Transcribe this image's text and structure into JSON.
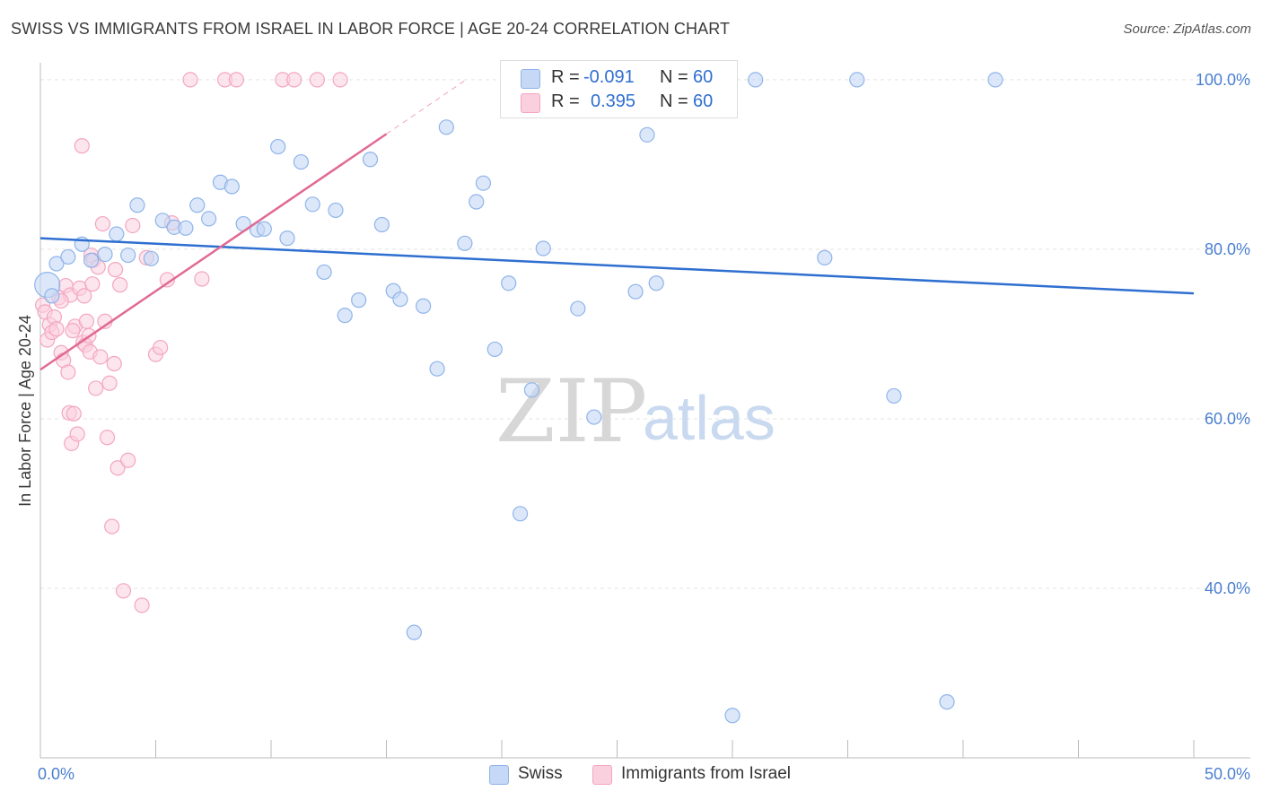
{
  "title": "SWISS VS IMMIGRANTS FROM ISRAEL IN LABOR FORCE | AGE 20-24 CORRELATION CHART",
  "source": "Source: ZipAtlas.com",
  "watermark": {
    "zip": "ZIP",
    "atlas": "atlas"
  },
  "colors": {
    "swiss": "#8fb4ea",
    "swiss_line": "#2f6fd0",
    "israel": "#f3a6bf",
    "israel_line": "#e06a95",
    "tick_text": "#4a7fd0",
    "grid": "#e3e3e3"
  },
  "legend": {
    "swiss": {
      "r_label": "R =",
      "r_value": "-0.091",
      "n_label": "N =",
      "n_value": "60"
    },
    "israel": {
      "r_label": "R =",
      "r_value": "0.395",
      "n_label": "N =",
      "n_value": "60"
    }
  },
  "bottom_legend": {
    "swiss": "Swiss",
    "israel": "Immigrants from Israel"
  },
  "chart_data": {
    "type": "scatter",
    "title": "SWISS VS IMMIGRANTS FROM ISRAEL IN LABOR FORCE | AGE 20-24 CORRELATION CHART",
    "xlabel": "",
    "ylabel": "In Labor Force | Age 20-24",
    "xlim": [
      0,
      50
    ],
    "ylim": [
      20,
      102
    ],
    "x_tick_labels": [
      "0.0%",
      "50.0%"
    ],
    "y_ticks": [
      40,
      60,
      80,
      100
    ],
    "y_tick_labels": [
      "40.0%",
      "60.0%",
      "80.0%",
      "100.0%"
    ],
    "grid": true,
    "legend_position": "top-center",
    "series": [
      {
        "name": "Swiss",
        "color": "#8fb4ea",
        "trend": {
          "x": [
            0,
            50
          ],
          "y": [
            81.3,
            74.8
          ]
        },
        "points": [
          [
            0.3,
            75.8
          ],
          [
            0.5,
            74.5
          ],
          [
            0.7,
            78.3
          ],
          [
            1.2,
            79.1
          ],
          [
            1.8,
            80.6
          ],
          [
            2.2,
            78.7
          ],
          [
            2.8,
            79.4
          ],
          [
            3.3,
            81.8
          ],
          [
            3.8,
            79.3
          ],
          [
            4.2,
            85.2
          ],
          [
            4.8,
            78.9
          ],
          [
            5.3,
            83.4
          ],
          [
            5.8,
            82.6
          ],
          [
            6.3,
            82.5
          ],
          [
            6.8,
            85.2
          ],
          [
            7.3,
            83.6
          ],
          [
            7.8,
            87.9
          ],
          [
            8.3,
            87.4
          ],
          [
            8.8,
            83.0
          ],
          [
            9.4,
            82.3
          ],
          [
            9.7,
            82.4
          ],
          [
            10.3,
            92.1
          ],
          [
            10.7,
            81.3
          ],
          [
            11.3,
            90.3
          ],
          [
            11.8,
            85.3
          ],
          [
            12.3,
            77.3
          ],
          [
            12.8,
            84.6
          ],
          [
            13.2,
            72.2
          ],
          [
            13.8,
            74.0
          ],
          [
            14.3,
            90.6
          ],
          [
            14.8,
            82.9
          ],
          [
            15.3,
            75.1
          ],
          [
            15.6,
            74.1
          ],
          [
            16.2,
            34.8
          ],
          [
            16.6,
            73.3
          ],
          [
            17.2,
            65.9
          ],
          [
            17.6,
            94.4
          ],
          [
            18.4,
            80.7
          ],
          [
            18.9,
            85.6
          ],
          [
            19.2,
            87.8
          ],
          [
            19.7,
            68.2
          ],
          [
            20.3,
            76.0
          ],
          [
            20.8,
            48.8
          ],
          [
            21.3,
            63.4
          ],
          [
            21.8,
            80.1
          ],
          [
            22.5,
            100.0
          ],
          [
            23.3,
            73.0
          ],
          [
            24.0,
            60.2
          ],
          [
            24.5,
            100.0
          ],
          [
            25.3,
            100.0
          ],
          [
            25.8,
            75.0
          ],
          [
            26.3,
            93.5
          ],
          [
            26.7,
            76.0
          ],
          [
            30.0,
            25.0
          ],
          [
            31.0,
            100.0
          ],
          [
            34.0,
            79.0
          ],
          [
            35.4,
            100.0
          ],
          [
            37.0,
            62.7
          ],
          [
            39.3,
            26.6
          ],
          [
            41.4,
            100.0
          ]
        ]
      },
      {
        "name": "Immigrants from Israel",
        "color": "#f3a6bf",
        "trend": {
          "x": [
            0,
            15
          ],
          "y": [
            65.8,
            93.6
          ]
        },
        "points": [
          [
            0.1,
            73.4
          ],
          [
            0.2,
            72.6
          ],
          [
            0.3,
            69.3
          ],
          [
            0.4,
            71.1
          ],
          [
            0.5,
            70.2
          ],
          [
            0.6,
            72.0
          ],
          [
            0.7,
            70.6
          ],
          [
            0.8,
            74.3
          ],
          [
            0.9,
            67.8
          ],
          [
            1.0,
            66.9
          ],
          [
            1.1,
            75.7
          ],
          [
            1.2,
            65.5
          ],
          [
            1.25,
            60.7
          ],
          [
            1.3,
            74.6
          ],
          [
            1.35,
            57.1
          ],
          [
            1.45,
            60.6
          ],
          [
            1.5,
            70.9
          ],
          [
            1.6,
            58.2
          ],
          [
            1.7,
            75.4
          ],
          [
            1.8,
            92.2
          ],
          [
            1.85,
            69.0
          ],
          [
            1.9,
            74.5
          ],
          [
            1.95,
            68.7
          ],
          [
            2.0,
            71.5
          ],
          [
            2.1,
            69.8
          ],
          [
            2.15,
            67.9
          ],
          [
            2.2,
            79.3
          ],
          [
            2.25,
            75.9
          ],
          [
            2.3,
            78.7
          ],
          [
            2.4,
            63.6
          ],
          [
            2.5,
            77.9
          ],
          [
            2.6,
            67.3
          ],
          [
            2.7,
            83.0
          ],
          [
            2.8,
            71.5
          ],
          [
            2.9,
            57.8
          ],
          [
            3.0,
            64.2
          ],
          [
            3.1,
            47.3
          ],
          [
            3.2,
            66.5
          ],
          [
            3.25,
            77.6
          ],
          [
            3.35,
            54.2
          ],
          [
            3.45,
            75.8
          ],
          [
            3.6,
            39.7
          ],
          [
            3.8,
            55.1
          ],
          [
            4.0,
            82.8
          ],
          [
            4.4,
            38.0
          ],
          [
            4.6,
            79.0
          ],
          [
            5.0,
            67.6
          ],
          [
            5.2,
            68.4
          ],
          [
            5.5,
            76.4
          ],
          [
            5.7,
            83.1
          ],
          [
            6.5,
            100.0
          ],
          [
            7.0,
            76.5
          ],
          [
            8.0,
            100.0
          ],
          [
            8.5,
            100.0
          ],
          [
            10.5,
            100.0
          ],
          [
            11.0,
            100.0
          ],
          [
            12.0,
            100.0
          ],
          [
            13.0,
            100.0
          ],
          [
            0.9,
            73.9
          ],
          [
            1.4,
            70.4
          ]
        ]
      }
    ]
  }
}
